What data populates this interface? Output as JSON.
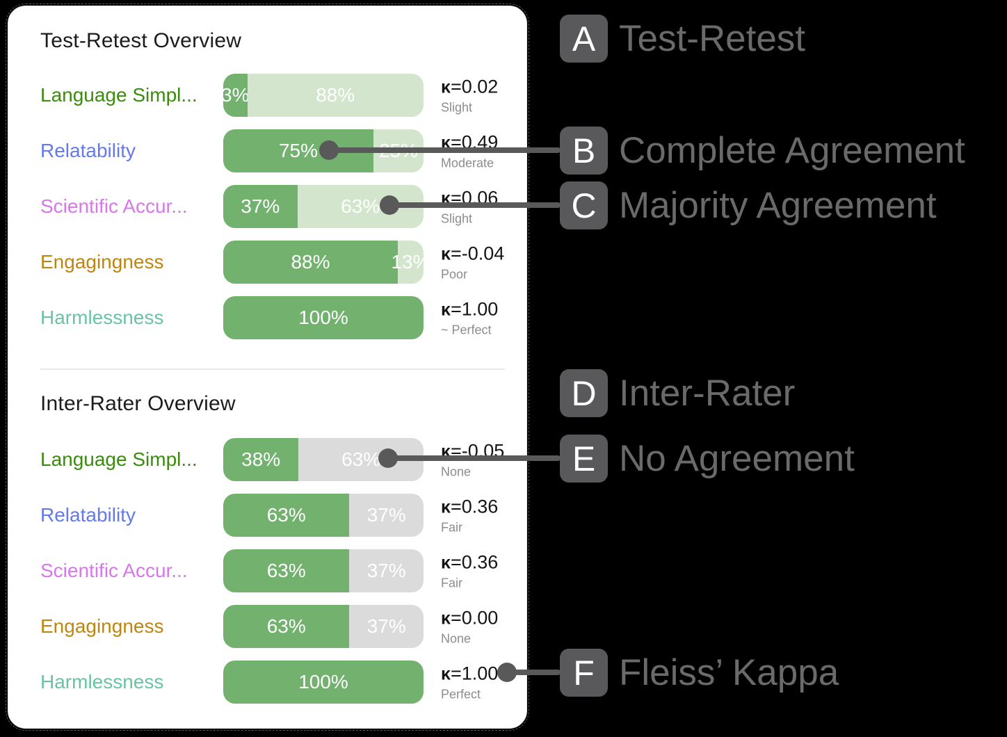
{
  "kappa_symbol": "κ",
  "colors": {
    "complete": "#72b16e",
    "majority": "#d3e6cd",
    "none": "#dbdbdb",
    "badge_bg": "#59595b",
    "callout_text": "#6a6a6a",
    "card_bg": "#ffffff",
    "page_bg": "#000000"
  },
  "sections": [
    {
      "title": "Test-Retest Overview",
      "rows": [
        {
          "label": "Language Simpl...",
          "label_color": "#3a8c0e",
          "segments": [
            {
              "type": "complete",
              "value": 3,
              "display": "3%"
            },
            {
              "type": "majority",
              "value": 88,
              "display": "88%"
            }
          ],
          "kappa_value": "=0.02",
          "interpretation": "Slight"
        },
        {
          "label": "Relatability",
          "label_color": "#6479ec",
          "segments": [
            {
              "type": "complete",
              "value": 75,
              "display": "75%"
            },
            {
              "type": "majority",
              "value": 25,
              "display": "25%"
            }
          ],
          "kappa_value": "=0.49",
          "interpretation": "Moderate"
        },
        {
          "label": "Scientific Accur...",
          "label_color": "#d678e8",
          "segments": [
            {
              "type": "complete",
              "value": 37,
              "display": "37%"
            },
            {
              "type": "majority",
              "value": 63,
              "display": "63%"
            }
          ],
          "kappa_value": "=0.06",
          "interpretation": "Slight"
        },
        {
          "label": "Engagingness",
          "label_color": "#bf860f",
          "segments": [
            {
              "type": "complete",
              "value": 88,
              "display": "88%"
            },
            {
              "type": "majority",
              "value": 13,
              "display": "13%"
            }
          ],
          "kappa_value": "=-0.04",
          "interpretation": "Poor"
        },
        {
          "label": "Harmlessness",
          "label_color": "#6ac3a2",
          "segments": [
            {
              "type": "complete",
              "value": 100,
              "display": "100%"
            }
          ],
          "kappa_value": "=1.00",
          "interpretation": "~ Perfect"
        }
      ]
    },
    {
      "title": "Inter-Rater Overview",
      "rows": [
        {
          "label": "Language Simpl...",
          "label_color": "#3a8c0e",
          "segments": [
            {
              "type": "complete",
              "value": 38,
              "display": "38%"
            },
            {
              "type": "none",
              "value": 63,
              "display": "63%"
            }
          ],
          "kappa_value": "=-0.05",
          "interpretation": "None"
        },
        {
          "label": "Relatability",
          "label_color": "#6479ec",
          "segments": [
            {
              "type": "complete",
              "value": 63,
              "display": "63%"
            },
            {
              "type": "none",
              "value": 37,
              "display": "37%"
            }
          ],
          "kappa_value": "=0.36",
          "interpretation": "Fair"
        },
        {
          "label": "Scientific Accur...",
          "label_color": "#d678e8",
          "segments": [
            {
              "type": "complete",
              "value": 63,
              "display": "63%"
            },
            {
              "type": "none",
              "value": 37,
              "display": "37%"
            }
          ],
          "kappa_value": "=0.36",
          "interpretation": "Fair"
        },
        {
          "label": "Engagingness",
          "label_color": "#bf860f",
          "segments": [
            {
              "type": "complete",
              "value": 63,
              "display": "63%"
            },
            {
              "type": "none",
              "value": 37,
              "display": "37%"
            }
          ],
          "kappa_value": "=0.00",
          "interpretation": "None"
        },
        {
          "label": "Harmlessness",
          "label_color": "#6ac3a2",
          "segments": [
            {
              "type": "complete",
              "value": 100,
              "display": "100%"
            }
          ],
          "kappa_value": "=1.00",
          "interpretation": "Perfect"
        }
      ]
    }
  ],
  "annotations": [
    {
      "letter": "A",
      "label": "Test-Retest"
    },
    {
      "letter": "B",
      "label": "Complete Agreement"
    },
    {
      "letter": "C",
      "label": "Majority Agreement"
    },
    {
      "letter": "D",
      "label": "Inter-Rater"
    },
    {
      "letter": "E",
      "label": "No Agreement"
    },
    {
      "letter": "F",
      "label": "Fleiss’ Kappa"
    }
  ],
  "chart_data": [
    {
      "type": "bar",
      "title": "Test-Retest Overview",
      "orientation": "horizontal-stacked",
      "categories": [
        "Language Simpl...",
        "Relatability",
        "Scientific Accur...",
        "Engagingness",
        "Harmlessness"
      ],
      "series": [
        {
          "name": "Complete Agreement",
          "values": [
            3,
            75,
            37,
            88,
            100
          ]
        },
        {
          "name": "Majority Agreement",
          "values": [
            88,
            25,
            63,
            13,
            0
          ]
        }
      ],
      "kappa": [
        0.02,
        0.49,
        0.06,
        -0.04,
        1.0
      ],
      "kappa_interpretation": [
        "Slight",
        "Moderate",
        "Slight",
        "Poor",
        "~ Perfect"
      ],
      "xlim": [
        0,
        100
      ],
      "grid": false,
      "legend": false,
      "unit": "%"
    },
    {
      "type": "bar",
      "title": "Inter-Rater Overview",
      "orientation": "horizontal-stacked",
      "categories": [
        "Language Simpl...",
        "Relatability",
        "Scientific Accur...",
        "Engagingness",
        "Harmlessness"
      ],
      "series": [
        {
          "name": "Complete Agreement",
          "values": [
            38,
            63,
            63,
            63,
            100
          ]
        },
        {
          "name": "No Agreement",
          "values": [
            63,
            37,
            37,
            37,
            0
          ]
        }
      ],
      "kappa": [
        -0.05,
        0.36,
        0.36,
        0.0,
        1.0
      ],
      "kappa_interpretation": [
        "None",
        "Fair",
        "Fair",
        "None",
        "Perfect"
      ],
      "xlim": [
        0,
        100
      ],
      "grid": false,
      "legend": false,
      "unit": "%"
    }
  ]
}
